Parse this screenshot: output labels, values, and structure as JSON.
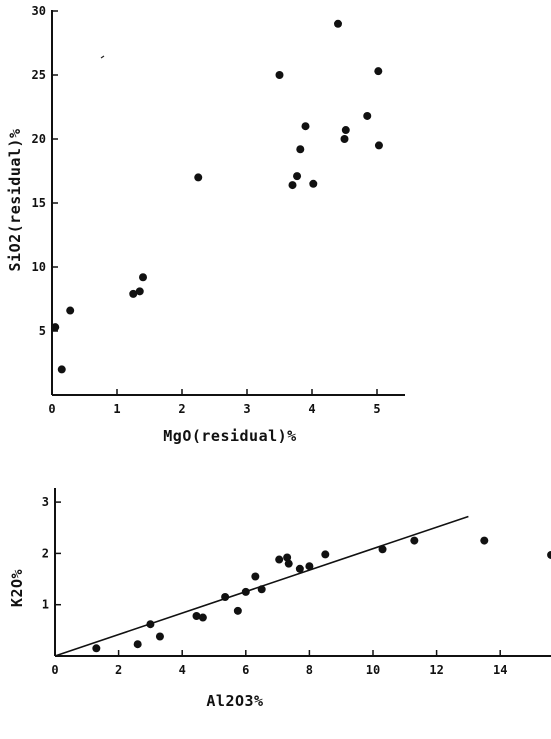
{
  "chart_data": [
    {
      "type": "scatter",
      "title": "",
      "xlabel": "MgO(residual)%",
      "ylabel": "SiO2(residual)%",
      "xlim": [
        0,
        5.5
      ],
      "ylim": [
        0,
        30
      ],
      "xticks": [
        "0",
        "1",
        "2",
        "3",
        "4",
        "5"
      ],
      "yticks": [
        "5",
        "10",
        "15",
        "20",
        "25",
        "30"
      ],
      "grid": false,
      "points": [
        {
          "x": 0.05,
          "y": 5.3
        },
        {
          "x": 0.15,
          "y": 2.0
        },
        {
          "x": 0.28,
          "y": 6.6
        },
        {
          "x": 1.25,
          "y": 7.9
        },
        {
          "x": 1.35,
          "y": 8.1
        },
        {
          "x": 1.4,
          "y": 9.2
        },
        {
          "x": 2.25,
          "y": 17.0
        },
        {
          "x": 3.5,
          "y": 25.0
        },
        {
          "x": 3.7,
          "y": 16.4
        },
        {
          "x": 3.77,
          "y": 17.1
        },
        {
          "x": 3.82,
          "y": 19.2
        },
        {
          "x": 3.9,
          "y": 21.0
        },
        {
          "x": 4.02,
          "y": 16.5
        },
        {
          "x": 4.4,
          "y": 29.0
        },
        {
          "x": 4.5,
          "y": 20.0
        },
        {
          "x": 4.52,
          "y": 20.7
        },
        {
          "x": 4.85,
          "y": 21.8
        },
        {
          "x": 5.02,
          "y": 25.3
        },
        {
          "x": 5.03,
          "y": 19.5
        }
      ]
    },
    {
      "type": "scatter",
      "title": "",
      "xlabel": "Al2O3%",
      "ylabel": "K2O%",
      "xlim": [
        0,
        15.6
      ],
      "ylim": [
        0,
        3
      ],
      "xticks": [
        "0",
        "2",
        "4",
        "6",
        "8",
        "10",
        "12",
        "14"
      ],
      "yticks": [
        "1",
        "2",
        "3"
      ],
      "grid": false,
      "points": [
        {
          "x": 1.3,
          "y": 0.15
        },
        {
          "x": 2.6,
          "y": 0.23
        },
        {
          "x": 3.0,
          "y": 0.62
        },
        {
          "x": 3.3,
          "y": 0.38
        },
        {
          "x": 4.45,
          "y": 0.78
        },
        {
          "x": 4.65,
          "y": 0.75
        },
        {
          "x": 5.35,
          "y": 1.15
        },
        {
          "x": 5.75,
          "y": 0.88
        },
        {
          "x": 6.0,
          "y": 1.25
        },
        {
          "x": 6.3,
          "y": 1.55
        },
        {
          "x": 6.5,
          "y": 1.3
        },
        {
          "x": 7.05,
          "y": 1.88
        },
        {
          "x": 7.3,
          "y": 1.92
        },
        {
          "x": 7.35,
          "y": 1.8
        },
        {
          "x": 7.7,
          "y": 1.7
        },
        {
          "x": 8.0,
          "y": 1.75
        },
        {
          "x": 8.5,
          "y": 1.98
        },
        {
          "x": 10.3,
          "y": 2.08
        },
        {
          "x": 11.3,
          "y": 2.25
        },
        {
          "x": 13.5,
          "y": 2.25
        },
        {
          "x": 15.6,
          "y": 1.97
        }
      ],
      "fit_line": {
        "x1": 0,
        "y1": 0,
        "x2": 13.0,
        "y2": 2.72
      }
    }
  ]
}
